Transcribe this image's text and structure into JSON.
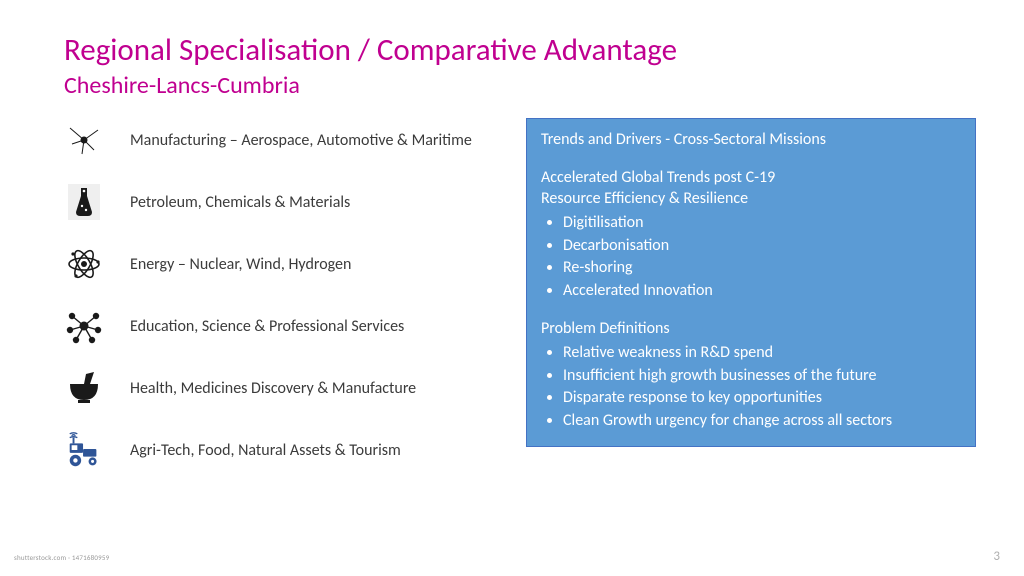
{
  "title": {
    "text": "Regional Specialisation / Comparative Advantage",
    "color": "#c00090"
  },
  "subtitle": {
    "text": "Cheshire-Lancs-Cumbria",
    "color": "#c00090"
  },
  "sectors": [
    {
      "label": "Manufacturing – Aerospace, Automotive & Maritime",
      "icon": "neuron"
    },
    {
      "label": "Petroleum, Chemicals & Materials",
      "icon": "flask"
    },
    {
      "label": "Energy – Nuclear, Wind, Hydrogen",
      "icon": "atom"
    },
    {
      "label": "Education, Science & Professional Services",
      "icon": "nodes"
    },
    {
      "label": "Health, Medicines Discovery & Manufacture",
      "icon": "mortar"
    },
    {
      "label": "Agri-Tech, Food, Natural Assets & Tourism",
      "icon": "tractor"
    }
  ],
  "panel": {
    "bg": "#5b9bd5",
    "text_color": "#ffffff",
    "border_color": "#4472c4",
    "title": "Trends and Drivers - Cross-Sectoral Missions",
    "section1_lines": [
      "Accelerated Global Trends post C-19",
      "Resource Efficiency & Resilience"
    ],
    "section1_bullets": [
      "Digitilisation",
      "Decarbonisation",
      "Re-shoring",
      "Accelerated Innovation"
    ],
    "section2_head": "Problem Definitions",
    "section2_bullets": [
      "Relative weakness in R&D spend",
      "Insufficient high growth businesses of the future",
      "Disparate response to key opportunities",
      "Clean Growth urgency for change across all sectors"
    ]
  },
  "page_number": "3",
  "watermark": "shutterstock.com · 1471680959",
  "icon_colors": {
    "default": "#1a1a1a",
    "tractor": "#2f5597",
    "flask_bg": "#efefef"
  }
}
